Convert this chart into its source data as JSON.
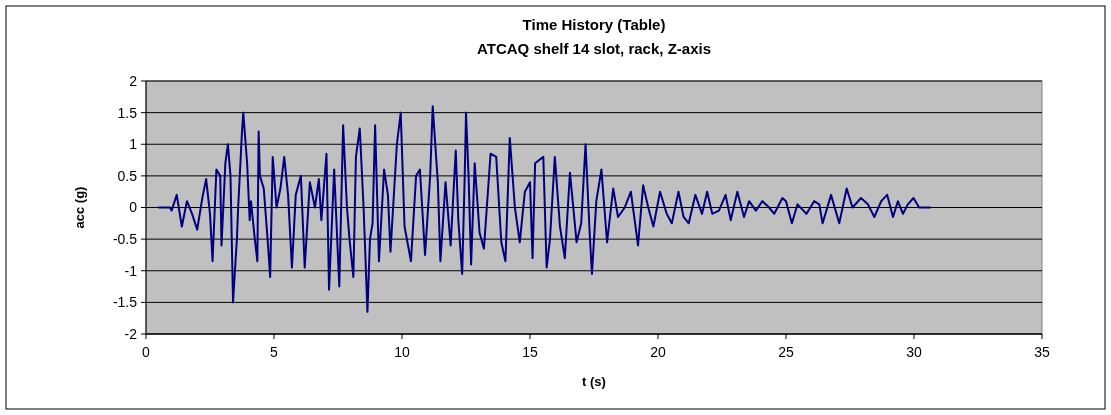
{
  "chart_data": {
    "type": "line",
    "title": "Time History (Table)",
    "subtitle": "ATCAQ shelf 14 slot, rack, Z-axis",
    "xlabel": "t (s)",
    "ylabel": "acc (g)",
    "xlim": [
      0,
      35
    ],
    "xticks": [
      0,
      5,
      10,
      15,
      20,
      25,
      30,
      35
    ],
    "ylim": [
      -2,
      2
    ],
    "yticks": [
      -2,
      -1.5,
      -1,
      -0.5,
      0,
      0.5,
      1,
      1.5,
      2
    ],
    "grid": "y",
    "series": [
      {
        "color": "#000080",
        "x": [
          0.48,
          0.94,
          1.0,
          1.2,
          1.4,
          1.6,
          1.8,
          2.0,
          2.2,
          2.35,
          2.5,
          2.6,
          2.75,
          2.9,
          2.95,
          3.1,
          3.2,
          3.3,
          3.4,
          3.55,
          3.6,
          3.75,
          3.8,
          3.95,
          4.05,
          4.1,
          4.25,
          4.35,
          4.4,
          4.45,
          4.6,
          4.75,
          4.85,
          4.95,
          5.1,
          5.25,
          5.4,
          5.55,
          5.7,
          5.85,
          6.05,
          6.2,
          6.4,
          6.6,
          6.75,
          6.85,
          7.05,
          7.15,
          7.35,
          7.55,
          7.7,
          7.85,
          7.95,
          8.1,
          8.2,
          8.35,
          8.5,
          8.65,
          8.75,
          8.85,
          8.95,
          9.1,
          9.3,
          9.45,
          9.55,
          9.8,
          9.95,
          10.1,
          10.35,
          10.55,
          10.7,
          10.9,
          11.1,
          11.2,
          11.4,
          11.5,
          11.7,
          11.9,
          12.1,
          12.2,
          12.35,
          12.45,
          12.5,
          12.6,
          12.7,
          12.84,
          13.03,
          13.2,
          13.46,
          13.68,
          13.88,
          14.04,
          14.21,
          14.41,
          14.6,
          14.8,
          15.0,
          15.1,
          15.2,
          15.52,
          15.65,
          15.78,
          15.97,
          16.17,
          16.36,
          16.56,
          16.82,
          17.0,
          17.17,
          17.33,
          17.42,
          17.59,
          17.79,
          18.01,
          18.25,
          18.44,
          18.7,
          18.94,
          19.22,
          19.42,
          19.62,
          19.82,
          20.08,
          20.34,
          20.54,
          20.8,
          21.0,
          21.2,
          21.46,
          21.72,
          21.92,
          22.12,
          22.38,
          22.64,
          22.84,
          23.1,
          23.36,
          23.56,
          23.82,
          24.08,
          24.34,
          24.54,
          24.86,
          25.0,
          25.23,
          25.45,
          25.8,
          26.1,
          26.3,
          26.43,
          26.76,
          27.08,
          27.37,
          27.6,
          27.93,
          28.2,
          28.45,
          28.72,
          28.95,
          29.18,
          29.37,
          29.57,
          29.76,
          29.98,
          30.2,
          30.65
        ],
        "values": [
          0,
          0,
          -0.05,
          0.2,
          -0.3,
          0.1,
          -0.1,
          -0.35,
          0.15,
          0.45,
          -0.1,
          -0.85,
          0.6,
          0.5,
          -0.6,
          0.7,
          1.0,
          0.5,
          -1.5,
          -0.5,
          0,
          1.2,
          1.5,
          0.7,
          -0.2,
          0.1,
          -0.5,
          -0.85,
          1.2,
          0.5,
          0.3,
          -0.5,
          -1.1,
          0.8,
          0,
          0.3,
          0.8,
          0.2,
          -0.95,
          0.2,
          0.5,
          -0.95,
          0.4,
          0,
          0.45,
          -0.2,
          0.85,
          -1.3,
          0.6,
          -1.25,
          1.3,
          0,
          -0.5,
          -1.1,
          0.8,
          1.25,
          0,
          -1.65,
          -0.5,
          -0.25,
          1.3,
          -0.85,
          0.6,
          0.2,
          -0.7,
          1.0,
          1.5,
          -0.3,
          -0.85,
          0.5,
          0.6,
          -0.75,
          0.5,
          1.6,
          0.4,
          -0.85,
          0.4,
          -0.6,
          0.9,
          -0.2,
          -1.05,
          0.5,
          1.5,
          0.5,
          -0.9,
          0.7,
          -0.4,
          -0.65,
          0.85,
          0.8,
          -0.55,
          -0.85,
          1.1,
          0,
          -0.55,
          0.25,
          0.4,
          -0.8,
          0.7,
          0.8,
          -0.95,
          -0.5,
          0.8,
          -0.3,
          -0.8,
          0.55,
          -0.55,
          -0.25,
          1.0,
          -0.4,
          -1.05,
          0.1,
          0.6,
          -0.55,
          0.3,
          -0.15,
          0,
          0.25,
          -0.6,
          0.35,
          0,
          -0.3,
          0.25,
          -0.1,
          -0.25,
          0.25,
          -0.15,
          -0.25,
          0.2,
          -0.1,
          0.25,
          -0.1,
          -0.05,
          0.2,
          -0.2,
          0.25,
          -0.15,
          0.1,
          -0.05,
          0.1,
          0,
          -0.1,
          0.15,
          0.1,
          -0.25,
          0.05,
          -0.1,
          0.1,
          0.05,
          -0.25,
          0.2,
          -0.25,
          0.3,
          0,
          0.15,
          0.05,
          -0.15,
          0.1,
          0.2,
          -0.15,
          0.1,
          -0.1,
          0.05,
          0.15,
          0,
          0
        ]
      }
    ]
  }
}
